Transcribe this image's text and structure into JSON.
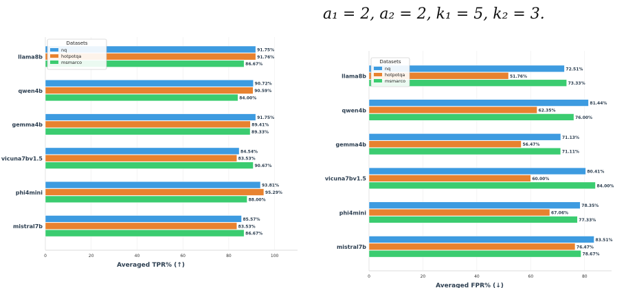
{
  "caption": "a₁ = 2, a₂ = 2, k₁ = 5, k₂ = 3.",
  "colors": {
    "nq": "#3d9be0",
    "hotpotqa": "#e8822f",
    "msmarco": "#3bcc70"
  },
  "chart_data": [
    {
      "type": "bar",
      "orientation": "horizontal",
      "xlabel": "Averaged TPR% (↑)",
      "xlim": [
        0,
        110
      ],
      "xticks": [
        0,
        20,
        40,
        60,
        80,
        100
      ],
      "legend": {
        "title": "Datasets",
        "placement": "top-left"
      },
      "categories": [
        "llama8b",
        "qwen4b",
        "gemma4b",
        "vicuna7bv1.5",
        "phi4mini",
        "mistral7b"
      ],
      "series": [
        {
          "name": "nq",
          "values": [
            91.75,
            90.72,
            91.75,
            84.54,
            93.81,
            85.57
          ],
          "labels": [
            "91.75%",
            "90.72%",
            "91.75%",
            "84.54%",
            "93.81%",
            "85.57%"
          ]
        },
        {
          "name": "hotpotqa",
          "values": [
            91.76,
            90.59,
            89.41,
            83.53,
            95.29,
            83.53
          ],
          "labels": [
            "91.76%",
            "90.59%",
            "89.41%",
            "83.53%",
            "95.29%",
            "83.53%"
          ]
        },
        {
          "name": "msmarco",
          "values": [
            86.67,
            84.0,
            89.33,
            90.67,
            88.0,
            86.67
          ],
          "labels": [
            "86.67%",
            "84.00%",
            "89.33%",
            "90.67%",
            "88.00%",
            "86.67%"
          ]
        }
      ]
    },
    {
      "type": "bar",
      "orientation": "horizontal",
      "xlabel": "Averaged FPR% (↓)",
      "xlim": [
        0,
        90
      ],
      "xticks": [
        0,
        20,
        40,
        60,
        80
      ],
      "legend": {
        "title": "Datasets",
        "placement": "top-left"
      },
      "categories": [
        "llama8b",
        "qwen4b",
        "gemma4b",
        "vicuna7bv1.5",
        "phi4mini",
        "mistral7b"
      ],
      "series": [
        {
          "name": "nq",
          "values": [
            72.51,
            81.44,
            71.13,
            80.41,
            78.35,
            83.51
          ],
          "labels": [
            "72.51%",
            "81.44%",
            "71.13%",
            "80.41%",
            "78.35%",
            "83.51%"
          ]
        },
        {
          "name": "hotpotqa",
          "values": [
            51.76,
            62.35,
            56.47,
            60.0,
            67.06,
            76.47
          ],
          "labels": [
            "51.76%",
            "62.35%",
            "56.47%",
            "60.00%",
            "67.06%",
            "76.47%"
          ]
        },
        {
          "name": "msmarco",
          "values": [
            73.33,
            76.0,
            71.11,
            84.0,
            77.33,
            78.67
          ],
          "labels": [
            "73.33%",
            "76.00%",
            "71.11%",
            "84.00%",
            "77.33%",
            "78.67%"
          ]
        }
      ]
    }
  ]
}
